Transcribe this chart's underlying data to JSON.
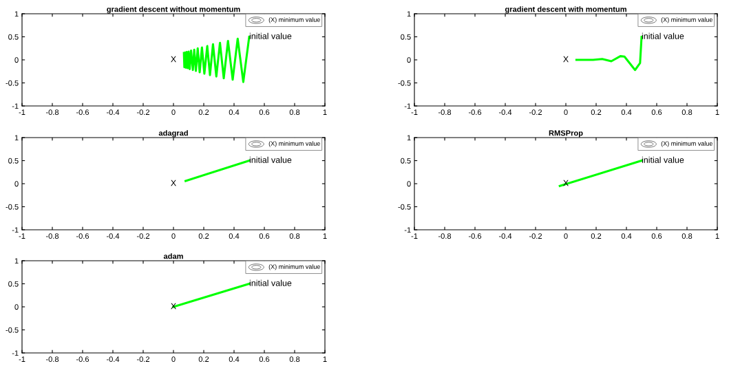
{
  "chart_data": [
    {
      "type": "line",
      "title": "gradient descent without momentum",
      "xlim": [
        -1,
        1
      ],
      "ylim": [
        -1,
        1
      ],
      "xticks": [
        -1,
        -0.8,
        -0.6,
        -0.4,
        -0.2,
        0,
        0.2,
        0.4,
        0.6,
        0.8,
        1
      ],
      "yticks": [
        -1,
        -0.5,
        0,
        0.5,
        1
      ],
      "grid": false,
      "series": [
        {
          "color": "#00ff00",
          "x": [
            0.5,
            0.461,
            0.424,
            0.391,
            0.36,
            0.332,
            0.307,
            0.283,
            0.261,
            0.241,
            0.223,
            0.204,
            0.188,
            0.173,
            0.16,
            0.148,
            0.137,
            0.128,
            0.116,
            0.107,
            0.1,
            0.094,
            0.087,
            0.082,
            0.076,
            0.072,
            0.069
          ],
          "values": [
            0.5,
            -0.48,
            0.46,
            -0.43,
            0.41,
            -0.4,
            0.37,
            -0.36,
            0.34,
            -0.33,
            0.3,
            -0.3,
            0.27,
            -0.27,
            0.25,
            -0.24,
            0.22,
            -0.22,
            0.2,
            -0.2,
            0.18,
            -0.18,
            0.17,
            -0.17,
            0.16,
            -0.16,
            0.15
          ]
        }
      ],
      "annotations": [
        "X",
        "initial value",
        "(X) minimum value"
      ]
    },
    {
      "type": "line",
      "title": "gradient descent with momentum",
      "xlim": [
        -1,
        1
      ],
      "ylim": [
        -1,
        1
      ],
      "xticks": [
        -1,
        -0.8,
        -0.6,
        -0.4,
        -0.2,
        0,
        0.2,
        0.4,
        0.6,
        0.8,
        1
      ],
      "yticks": [
        -1,
        -0.5,
        0,
        0.5,
        1
      ],
      "grid": false,
      "series": [
        {
          "color": "#00ff00",
          "x": [
            0.5,
            0.49,
            0.457,
            0.387,
            0.36,
            0.3,
            0.24,
            0.18,
            0.07
          ],
          "values": [
            0.5,
            -0.07,
            -0.22,
            0.07,
            0.08,
            -0.03,
            0.02,
            0,
            0
          ]
        }
      ],
      "annotations": [
        "X",
        "initial value",
        "(X) minimum value"
      ]
    },
    {
      "type": "line",
      "title": "adagrad",
      "xlim": [
        -1,
        1
      ],
      "ylim": [
        -1,
        1
      ],
      "xticks": [
        -1,
        -0.8,
        -0.6,
        -0.4,
        -0.2,
        0,
        0.2,
        0.4,
        0.6,
        0.8,
        1
      ],
      "yticks": [
        -1,
        -0.5,
        0,
        0.5,
        1
      ],
      "grid": false,
      "series": [
        {
          "color": "#00ff00",
          "x": [
            0.5,
            0.08
          ],
          "values": [
            0.5,
            0.06
          ]
        }
      ],
      "annotations": [
        "X",
        "initial value",
        "(X) minimum value"
      ]
    },
    {
      "type": "line",
      "title": "RMSProp",
      "xlim": [
        -1,
        1
      ],
      "ylim": [
        -1,
        1
      ],
      "xticks": [
        -1,
        -0.8,
        -0.6,
        -0.4,
        -0.2,
        0,
        0.2,
        0.4,
        0.6,
        0.8,
        1
      ],
      "yticks": [
        -1,
        -0.5,
        0,
        0.5,
        1
      ],
      "grid": false,
      "series": [
        {
          "color": "#00ff00",
          "x": [
            0.5,
            -0.04
          ],
          "values": [
            0.5,
            -0.05
          ]
        }
      ],
      "annotations": [
        "X",
        "initial value",
        "(X) minimum value"
      ]
    },
    {
      "type": "line",
      "title": "adam",
      "xlim": [
        -1,
        1
      ],
      "ylim": [
        -1,
        1
      ],
      "xticks": [
        -1,
        -0.8,
        -0.6,
        -0.4,
        -0.2,
        0,
        0.2,
        0.4,
        0.6,
        0.8,
        1
      ],
      "yticks": [
        -1,
        -0.5,
        0,
        0.5,
        1
      ],
      "grid": false,
      "series": [
        {
          "color": "#00ff00",
          "x": [
            0.5,
            0
          ],
          "values": [
            0.5,
            0
          ]
        }
      ],
      "annotations": [
        "X",
        "initial value",
        "(X) minimum value"
      ]
    }
  ]
}
